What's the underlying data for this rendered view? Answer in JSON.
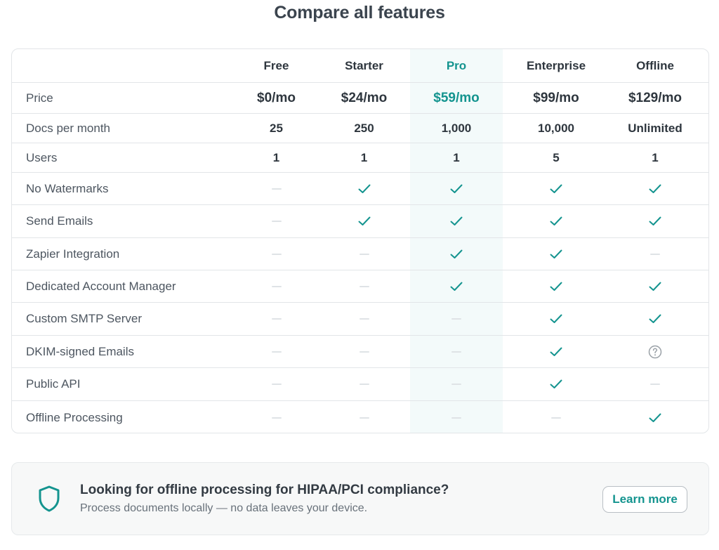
{
  "page": {
    "title": "Compare all features"
  },
  "colors": {
    "accent": "#14948f",
    "pro_column_bg": "#f3fafa",
    "dash": "#dfe3e6",
    "question": "#9aa1a7"
  },
  "table": {
    "plans": [
      "Free",
      "Starter",
      "Pro",
      "Enterprise",
      "Offline"
    ],
    "highlighted_plan": "Pro",
    "rows": [
      {
        "label": "Price",
        "kind": "price",
        "values": [
          "$0/mo",
          "$24/mo",
          "$59/mo",
          "$99/mo",
          "$129/mo"
        ]
      },
      {
        "label": "Docs per month",
        "kind": "text",
        "values": [
          "25",
          "250",
          "1,000",
          "10,000",
          "Unlimited"
        ]
      },
      {
        "label": "Users",
        "kind": "text",
        "values": [
          "1",
          "1",
          "1",
          "5",
          "1"
        ]
      },
      {
        "label": "No Watermarks",
        "kind": "feature",
        "values": [
          "no",
          "yes",
          "yes",
          "yes",
          "yes"
        ]
      },
      {
        "label": "Send Emails",
        "kind": "feature",
        "values": [
          "no",
          "yes",
          "yes",
          "yes",
          "yes"
        ]
      },
      {
        "label": "Zapier Integration",
        "kind": "feature",
        "values": [
          "no",
          "no",
          "yes",
          "yes",
          "no"
        ]
      },
      {
        "label": "Dedicated Account Manager",
        "kind": "feature",
        "values": [
          "no",
          "no",
          "yes",
          "yes",
          "yes"
        ]
      },
      {
        "label": "Custom SMTP Server",
        "kind": "feature",
        "values": [
          "no",
          "no",
          "no",
          "yes",
          "yes"
        ]
      },
      {
        "label": "DKIM-signed Emails",
        "kind": "feature",
        "values": [
          "no",
          "no",
          "no",
          "yes",
          "question"
        ]
      },
      {
        "label": "Public API",
        "kind": "feature",
        "values": [
          "no",
          "no",
          "no",
          "yes",
          "no"
        ]
      },
      {
        "label": "Offline Processing",
        "kind": "feature",
        "values": [
          "no",
          "no",
          "no",
          "no",
          "yes"
        ]
      }
    ]
  },
  "banner": {
    "icon": "shield-icon",
    "title": "Looking for offline processing for HIPAA/PCI compliance?",
    "subtitle": "Process documents locally — no data leaves your device.",
    "button_label": "Learn more"
  }
}
